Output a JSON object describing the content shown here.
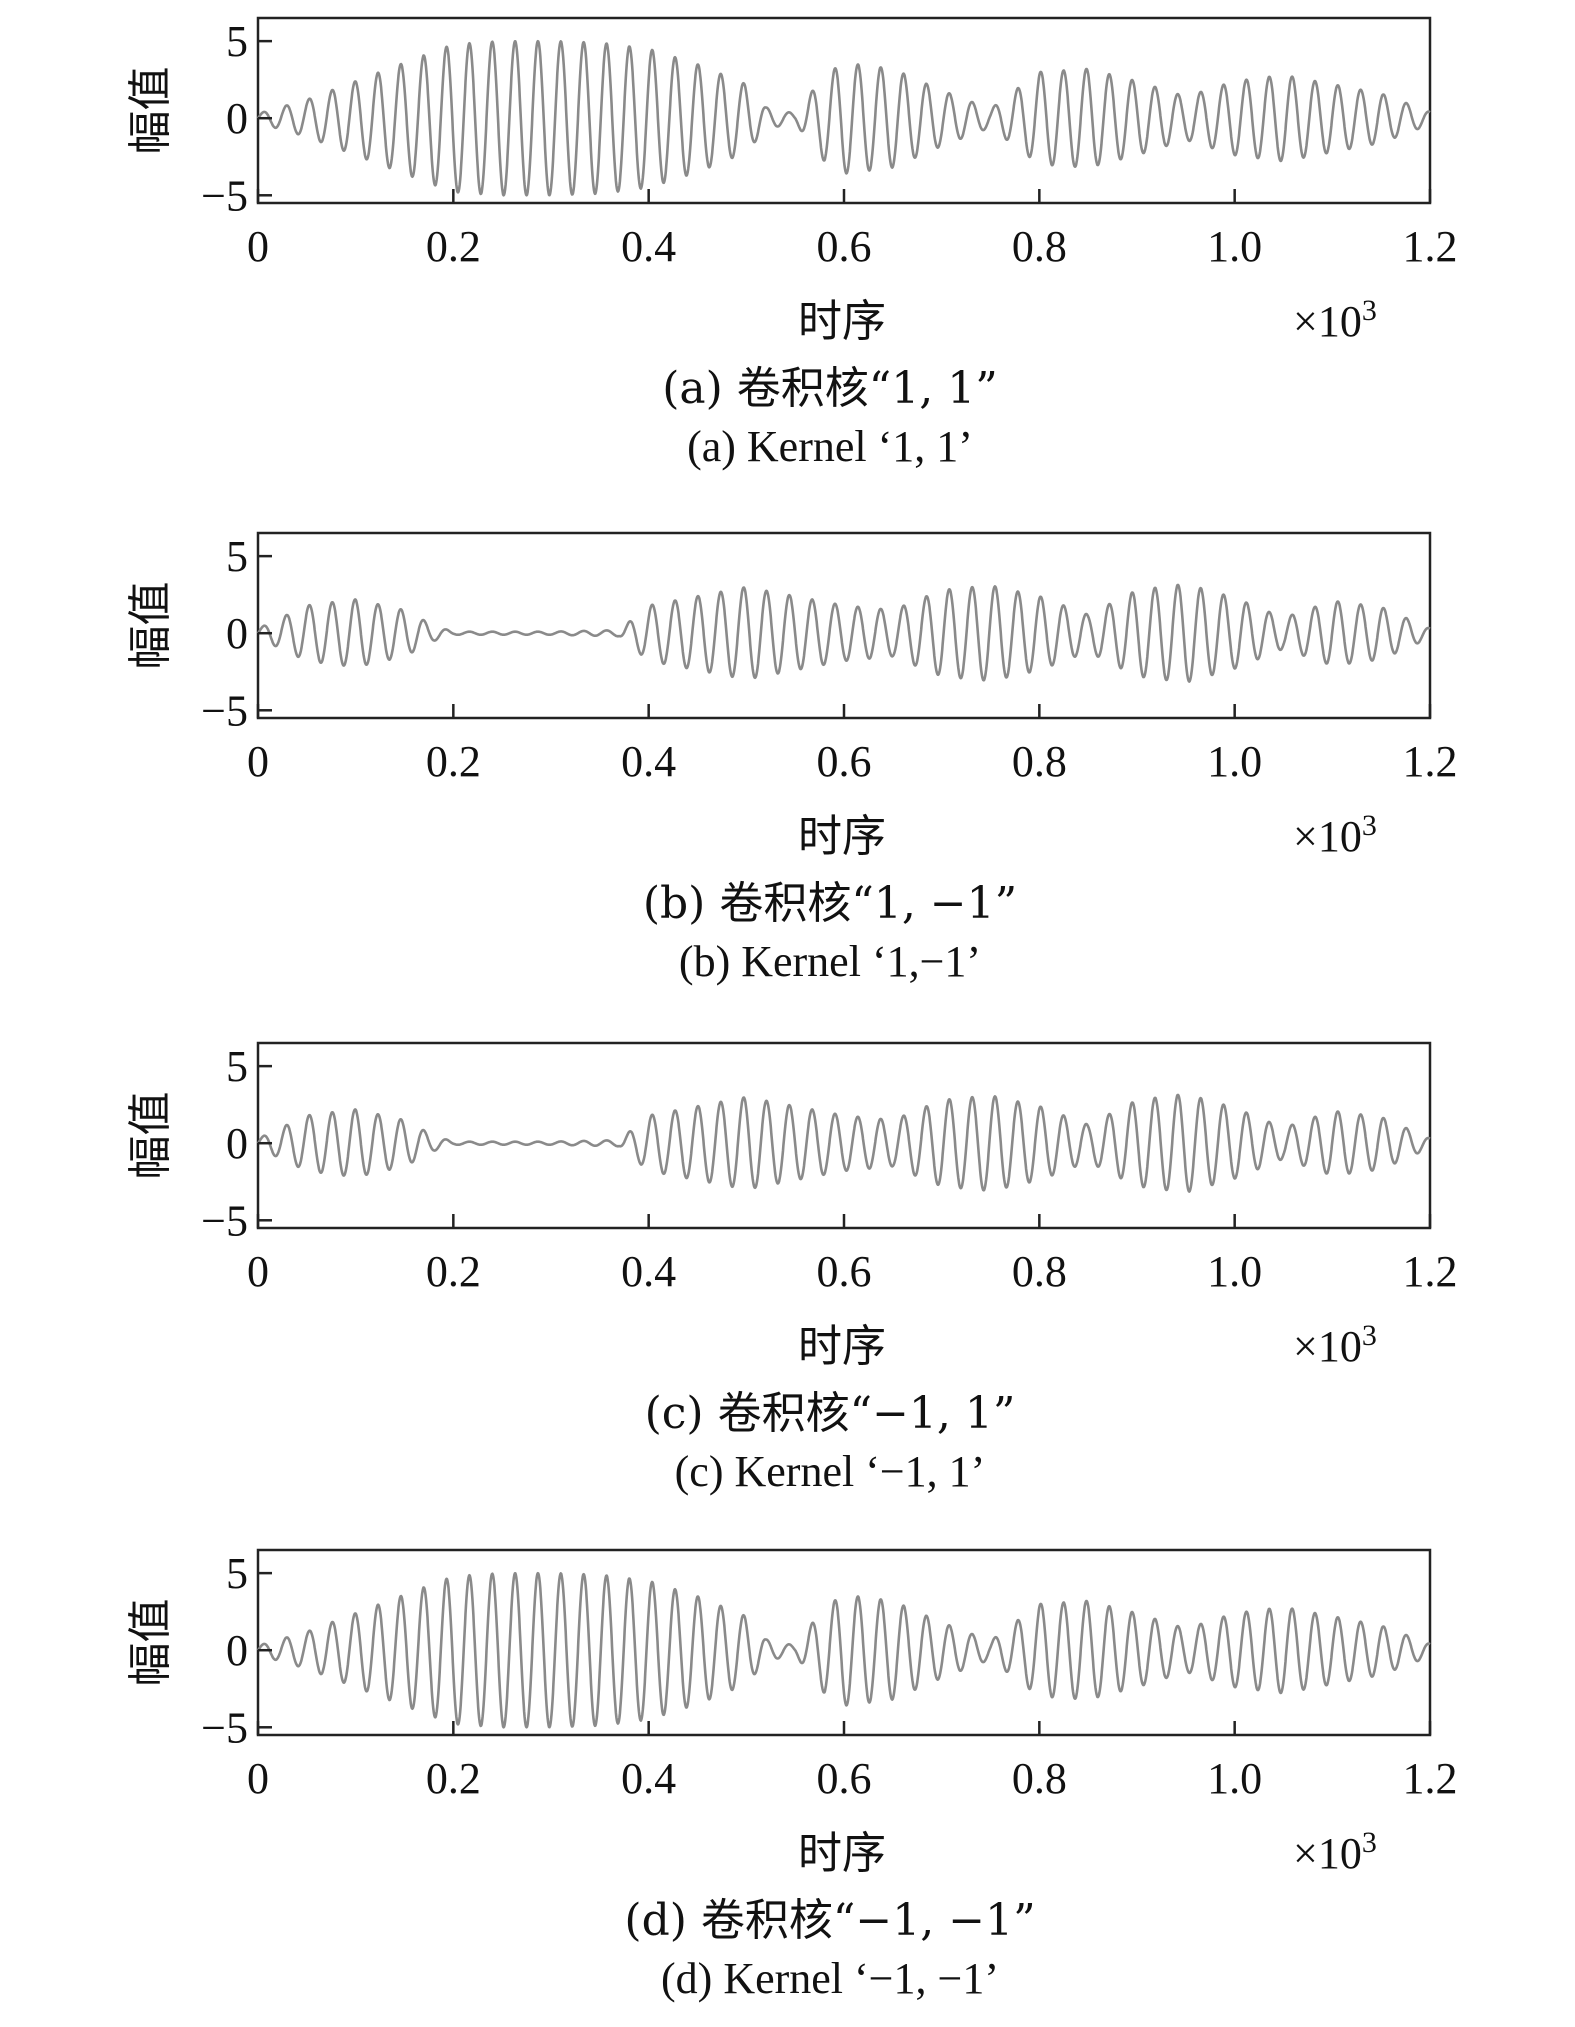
{
  "figure": {
    "colors": {
      "axes": "#222222",
      "signal": "#8a8a8a",
      "text": "#111111"
    }
  },
  "chart_data": [
    {
      "type": "line",
      "id": "a",
      "caption_cn": "(a) 卷积核“1, 1”",
      "caption_en": "(a) Kernel ‘1, 1’",
      "xlabel": "时序",
      "x_multiplier_label": "×10",
      "x_multiplier_exponent": "3",
      "ylabel": "幅值",
      "xlim": [
        0,
        1.2
      ],
      "ylim": [
        -5.5,
        6.5
      ],
      "x_ticks": [
        "0",
        "0.2",
        "0.4",
        "0.6",
        "0.8",
        "1.0",
        "1.2"
      ],
      "y_ticks": [
        "5",
        "0",
        "−5"
      ],
      "envelope": {
        "x": [
          0,
          0.05,
          0.1,
          0.15,
          0.2,
          0.25,
          0.3,
          0.35,
          0.4,
          0.45,
          0.5,
          0.52,
          0.55,
          0.58,
          0.6,
          0.65,
          0.7,
          0.75,
          0.8,
          0.85,
          0.9,
          0.95,
          1.0,
          1.05,
          1.1,
          1.15,
          1.2
        ],
        "amplitude": [
          0.3,
          1.2,
          2.4,
          3.6,
          4.8,
          5.0,
          5.0,
          4.9,
          4.5,
          3.5,
          2.2,
          0.7,
          0.3,
          2.8,
          3.6,
          3.2,
          1.8,
          0.6,
          3.0,
          3.2,
          2.4,
          1.4,
          2.4,
          2.8,
          2.2,
          1.6,
          0.4
        ]
      }
    },
    {
      "type": "line",
      "id": "b",
      "caption_cn": "(b) 卷积核“1, −1”",
      "caption_en": "(b) Kernel ‘1,−1’",
      "xlabel": "时序",
      "x_multiplier_label": "×10",
      "x_multiplier_exponent": "3",
      "ylabel": "幅值",
      "xlim": [
        0,
        1.2
      ],
      "ylim": [
        -5.5,
        6.5
      ],
      "x_ticks": [
        "0",
        "0.2",
        "0.4",
        "0.6",
        "0.8",
        "1.0",
        "1.2"
      ],
      "y_ticks": [
        "5",
        "0",
        "−5"
      ],
      "envelope": {
        "x": [
          0,
          0.05,
          0.1,
          0.15,
          0.18,
          0.2,
          0.3,
          0.37,
          0.4,
          0.45,
          0.5,
          0.55,
          0.6,
          0.65,
          0.7,
          0.75,
          0.8,
          0.85,
          0.9,
          0.95,
          1.0,
          1.05,
          1.1,
          1.15,
          1.2
        ],
        "amplitude": [
          0.3,
          1.8,
          2.2,
          1.5,
          0.5,
          0.1,
          0.1,
          0.2,
          1.8,
          2.4,
          3.0,
          2.4,
          1.8,
          1.5,
          2.8,
          3.1,
          2.4,
          1.2,
          2.8,
          3.2,
          2.3,
          1.0,
          2.1,
          1.7,
          0.3
        ]
      }
    },
    {
      "type": "line",
      "id": "c",
      "caption_cn": "(c) 卷积核“−1, 1”",
      "caption_en": "(c) Kernel ‘−1, 1’",
      "xlabel": "时序",
      "x_multiplier_label": "×10",
      "x_multiplier_exponent": "3",
      "ylabel": "幅值",
      "xlim": [
        0,
        1.2
      ],
      "ylim": [
        -5.5,
        6.5
      ],
      "x_ticks": [
        "0",
        "0.2",
        "0.4",
        "0.6",
        "0.8",
        "1.0",
        "1.2"
      ],
      "y_ticks": [
        "5",
        "0",
        "−5"
      ],
      "envelope": {
        "x": [
          0,
          0.05,
          0.1,
          0.15,
          0.18,
          0.2,
          0.3,
          0.37,
          0.4,
          0.45,
          0.5,
          0.55,
          0.6,
          0.65,
          0.7,
          0.75,
          0.8,
          0.85,
          0.9,
          0.95,
          1.0,
          1.05,
          1.1,
          1.15,
          1.2
        ],
        "amplitude": [
          0.3,
          1.8,
          2.2,
          1.5,
          0.5,
          0.1,
          0.1,
          0.2,
          1.8,
          2.4,
          3.0,
          2.4,
          1.8,
          1.5,
          2.8,
          3.1,
          2.4,
          1.2,
          2.8,
          3.2,
          2.3,
          1.0,
          2.1,
          1.7,
          0.3
        ]
      }
    },
    {
      "type": "line",
      "id": "d",
      "caption_cn": "(d) 卷积核“−1, −1”",
      "caption_en": "(d) Kernel ‘−1, −1’",
      "xlabel": "时序",
      "x_multiplier_label": "×10",
      "x_multiplier_exponent": "3",
      "ylabel": "幅值",
      "xlim": [
        0,
        1.2
      ],
      "ylim": [
        -5.5,
        6.5
      ],
      "x_ticks": [
        "0",
        "0.2",
        "0.4",
        "0.6",
        "0.8",
        "1.0",
        "1.2"
      ],
      "y_ticks": [
        "5",
        "0",
        "−5"
      ],
      "envelope": {
        "x": [
          0,
          0.05,
          0.1,
          0.15,
          0.2,
          0.25,
          0.3,
          0.35,
          0.4,
          0.45,
          0.5,
          0.52,
          0.55,
          0.58,
          0.6,
          0.65,
          0.7,
          0.75,
          0.8,
          0.85,
          0.9,
          0.95,
          1.0,
          1.05,
          1.1,
          1.15,
          1.2
        ],
        "amplitude": [
          0.3,
          1.2,
          2.4,
          3.6,
          4.8,
          5.0,
          5.0,
          4.9,
          4.5,
          3.5,
          2.2,
          0.7,
          0.3,
          2.8,
          3.6,
          3.2,
          1.8,
          0.6,
          3.0,
          3.2,
          2.4,
          1.4,
          2.4,
          2.8,
          2.2,
          1.6,
          0.4
        ]
      }
    }
  ]
}
